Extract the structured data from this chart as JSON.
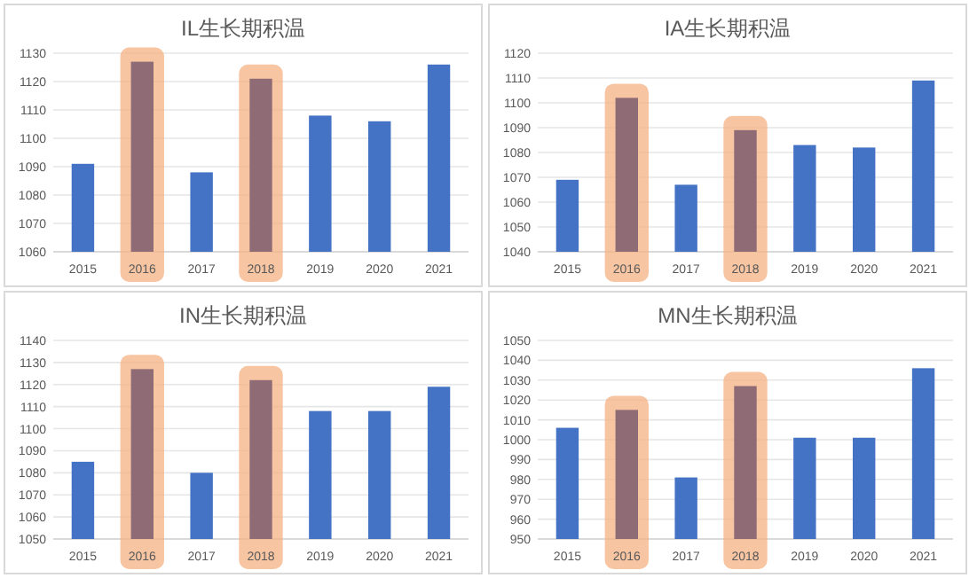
{
  "chart_data": [
    {
      "type": "bar",
      "title": "IL生长期积温",
      "categories": [
        "2015",
        "2016",
        "2017",
        "2018",
        "2019",
        "2020",
        "2021"
      ],
      "values": [
        1091,
        1127,
        1088,
        1121,
        1108,
        1106,
        1126
      ],
      "colors": [
        "#4472c4",
        "#8e6b75",
        "#4472c4",
        "#8e6b75",
        "#4472c4",
        "#4472c4",
        "#4472c4"
      ],
      "ylim": [
        1060,
        1130
      ],
      "yticks": [
        1060,
        1070,
        1080,
        1090,
        1100,
        1110,
        1120,
        1130
      ],
      "grid": "y",
      "bands": [
        {
          "axis": "x",
          "from": "2016",
          "to": "2016",
          "color": "#f4b183"
        },
        {
          "axis": "x",
          "from": "2018",
          "to": "2018",
          "color": "#f4b183"
        }
      ]
    },
    {
      "type": "bar",
      "title": "IA生长期积温",
      "categories": [
        "2015",
        "2016",
        "2017",
        "2018",
        "2019",
        "2020",
        "2021"
      ],
      "values": [
        1069,
        1102,
        1067,
        1089,
        1083,
        1082,
        1109
      ],
      "colors": [
        "#4472c4",
        "#8e6b75",
        "#4472c4",
        "#8e6b75",
        "#4472c4",
        "#4472c4",
        "#4472c4"
      ],
      "ylim": [
        1040,
        1120
      ],
      "yticks": [
        1040,
        1050,
        1060,
        1070,
        1080,
        1090,
        1100,
        1110,
        1120
      ],
      "grid": "y",
      "bands": [
        {
          "axis": "x",
          "from": "2016",
          "to": "2016",
          "color": "#f4b183"
        },
        {
          "axis": "x",
          "from": "2018",
          "to": "2018",
          "color": "#f4b183"
        }
      ]
    },
    {
      "type": "bar",
      "title": "IN生长期积温",
      "categories": [
        "2015",
        "2016",
        "2017",
        "2018",
        "2019",
        "2020",
        "2021"
      ],
      "values": [
        1085,
        1127,
        1080,
        1122,
        1108,
        1108,
        1119
      ],
      "colors": [
        "#4472c4",
        "#8e6b75",
        "#4472c4",
        "#8e6b75",
        "#4472c4",
        "#4472c4",
        "#4472c4"
      ],
      "ylim": [
        1050,
        1140
      ],
      "yticks": [
        1050,
        1060,
        1070,
        1080,
        1090,
        1100,
        1110,
        1120,
        1130,
        1140
      ],
      "grid": "y",
      "bands": [
        {
          "axis": "x",
          "from": "2016",
          "to": "2016",
          "color": "#f4b183"
        },
        {
          "axis": "x",
          "from": "2018",
          "to": "2018",
          "color": "#f4b183"
        }
      ]
    },
    {
      "type": "bar",
      "title": "MN生长期积温",
      "categories": [
        "2015",
        "2016",
        "2017",
        "2018",
        "2019",
        "2020",
        "2021"
      ],
      "values": [
        1006,
        1015,
        981,
        1027,
        1001,
        1001,
        1036
      ],
      "colors": [
        "#4472c4",
        "#8e6b75",
        "#4472c4",
        "#8e6b75",
        "#4472c4",
        "#4472c4",
        "#4472c4"
      ],
      "ylim": [
        950,
        1050
      ],
      "yticks": [
        950,
        960,
        970,
        980,
        990,
        1000,
        1010,
        1020,
        1030,
        1040,
        1050
      ],
      "grid": "y",
      "bands": [
        {
          "axis": "x",
          "from": "2016",
          "to": "2016",
          "color": "#f4b183"
        },
        {
          "axis": "x",
          "from": "2018",
          "to": "2018",
          "color": "#f4b183"
        }
      ]
    }
  ]
}
